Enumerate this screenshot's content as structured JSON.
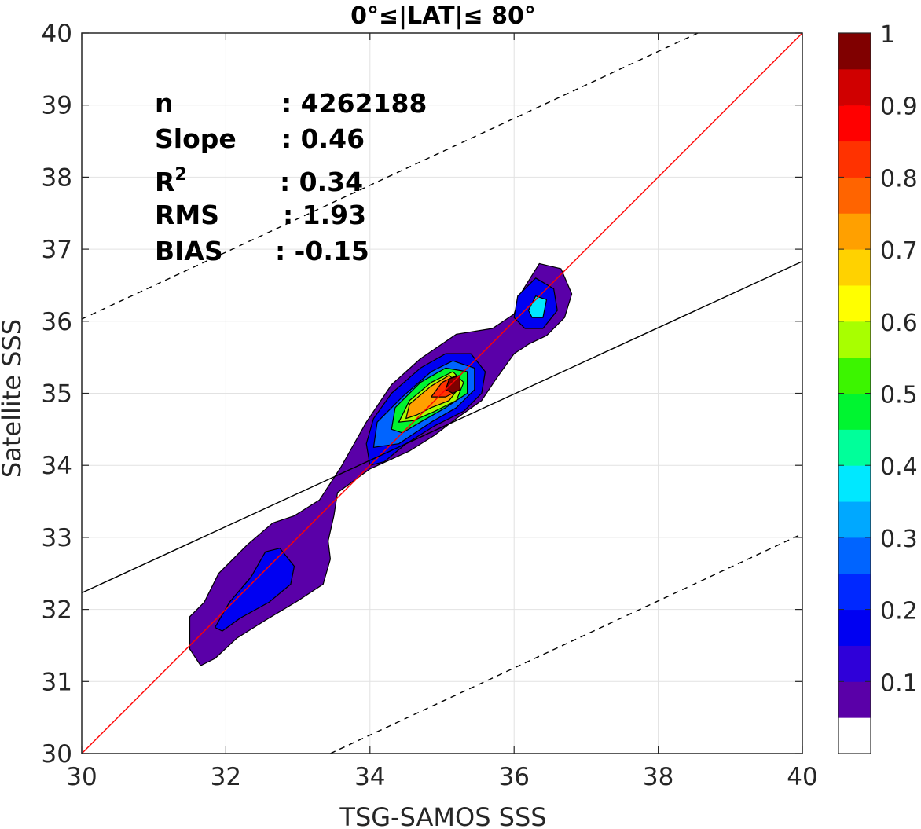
{
  "chart_data": {
    "type": "heatmap",
    "title": "0°≤|LAT|≤ 80°",
    "xlabel": "TSG-SAMOS SSS",
    "ylabel": "Satellite SSS",
    "xlim": [
      30,
      40
    ],
    "ylim": [
      30,
      40
    ],
    "xticks": [
      30,
      32,
      34,
      36,
      38,
      40
    ],
    "yticks": [
      30,
      31,
      32,
      33,
      34,
      35,
      36,
      37,
      38,
      39,
      40
    ],
    "grid": true,
    "stats": [
      {
        "key": "n",
        "value": ": 4262188"
      },
      {
        "key": "Slope",
        "value": ": 0.46"
      },
      {
        "key": "R",
        "sup": "2",
        "value": ": 0.34"
      },
      {
        "key": "RMS",
        "value": ": 1.93"
      },
      {
        "key": "BIAS",
        "value": ": -0.15"
      }
    ],
    "reference_lines": [
      {
        "name": "one-to-one",
        "style": "solid",
        "color": "#ff0000",
        "points": [
          [
            30,
            30
          ],
          [
            40,
            40
          ]
        ]
      },
      {
        "name": "regression",
        "style": "solid",
        "color": "#000000",
        "points": [
          [
            30,
            32.23
          ],
          [
            40,
            36.83
          ]
        ]
      },
      {
        "name": "upper-envelope",
        "style": "dashed",
        "color": "#000000",
        "points": [
          [
            30,
            36.03
          ],
          [
            38.55,
            40
          ]
        ]
      },
      {
        "name": "lower-envelope",
        "style": "dashed",
        "color": "#000000",
        "points": [
          [
            33.45,
            30
          ],
          [
            40,
            33.05
          ]
        ]
      }
    ],
    "density_contours": [
      {
        "level": 0.05,
        "points": [
          [
            31.5,
            31.45
          ],
          [
            31.5,
            31.9
          ],
          [
            31.7,
            32.1
          ],
          [
            31.9,
            32.5
          ],
          [
            32.3,
            32.9
          ],
          [
            32.65,
            33.2
          ],
          [
            32.95,
            33.3
          ],
          [
            33.3,
            33.52
          ],
          [
            33.6,
            33.98
          ],
          [
            33.95,
            34.6
          ],
          [
            34.3,
            35.12
          ],
          [
            34.7,
            35.48
          ],
          [
            35.2,
            35.82
          ],
          [
            35.7,
            35.9
          ],
          [
            36.0,
            36.1
          ],
          [
            36.1,
            36.4
          ],
          [
            36.35,
            36.8
          ],
          [
            36.65,
            36.73
          ],
          [
            36.8,
            36.38
          ],
          [
            36.7,
            36.05
          ],
          [
            36.45,
            35.8
          ],
          [
            36.2,
            35.68
          ],
          [
            36.0,
            35.55
          ],
          [
            35.75,
            35.2
          ],
          [
            35.55,
            34.9
          ],
          [
            35.2,
            34.65
          ],
          [
            34.9,
            34.42
          ],
          [
            34.55,
            34.2
          ],
          [
            34.0,
            33.95
          ],
          [
            33.55,
            33.62
          ],
          [
            33.5,
            33.3
          ],
          [
            33.42,
            32.95
          ],
          [
            33.45,
            32.7
          ],
          [
            33.35,
            32.35
          ],
          [
            33.0,
            32.12
          ],
          [
            32.55,
            31.85
          ],
          [
            32.15,
            31.6
          ],
          [
            31.85,
            31.32
          ],
          [
            31.65,
            31.22
          ]
        ]
      },
      {
        "level": 0.15,
        "points": [
          [
            31.85,
            31.75
          ],
          [
            32.05,
            32.1
          ],
          [
            32.35,
            32.45
          ],
          [
            32.55,
            32.8
          ],
          [
            32.75,
            32.85
          ],
          [
            32.95,
            32.6
          ],
          [
            32.9,
            32.35
          ],
          [
            32.6,
            32.1
          ],
          [
            32.2,
            31.88
          ],
          [
            31.95,
            31.7
          ]
        ]
      },
      {
        "level": 0.15,
        "points": [
          [
            34.0,
            34.0
          ],
          [
            33.95,
            34.3
          ],
          [
            34.05,
            34.65
          ],
          [
            34.3,
            35.0
          ],
          [
            34.7,
            35.35
          ],
          [
            35.05,
            35.55
          ],
          [
            35.4,
            35.55
          ],
          [
            35.6,
            35.3
          ],
          [
            35.55,
            35.0
          ],
          [
            35.3,
            34.75
          ],
          [
            34.9,
            34.55
          ],
          [
            34.5,
            34.3
          ],
          [
            34.2,
            34.05
          ]
        ]
      },
      {
        "level": 0.15,
        "points": [
          [
            36.0,
            36.05
          ],
          [
            36.05,
            36.35
          ],
          [
            36.3,
            36.6
          ],
          [
            36.55,
            36.45
          ],
          [
            36.6,
            36.15
          ],
          [
            36.4,
            35.9
          ],
          [
            36.15,
            35.9
          ]
        ]
      },
      {
        "level": 0.25,
        "points": [
          [
            34.05,
            34.25
          ],
          [
            34.1,
            34.6
          ],
          [
            34.45,
            34.95
          ],
          [
            34.85,
            35.3
          ],
          [
            35.15,
            35.45
          ],
          [
            35.45,
            35.35
          ],
          [
            35.45,
            35.05
          ],
          [
            35.2,
            34.8
          ],
          [
            34.85,
            34.6
          ],
          [
            34.4,
            34.3
          ]
        ]
      },
      {
        "level": 0.35,
        "points": [
          [
            36.2,
            36.15
          ],
          [
            36.3,
            36.35
          ],
          [
            36.45,
            36.3
          ],
          [
            36.4,
            36.05
          ],
          [
            36.25,
            36.05
          ]
        ]
      },
      {
        "level": 0.45,
        "points": [
          [
            34.3,
            34.5
          ],
          [
            34.35,
            34.8
          ],
          [
            34.7,
            35.15
          ],
          [
            35.05,
            35.35
          ],
          [
            35.35,
            35.3
          ],
          [
            35.35,
            35.0
          ],
          [
            35.05,
            34.8
          ],
          [
            34.7,
            34.6
          ],
          [
            34.45,
            34.45
          ]
        ]
      },
      {
        "level": 0.55,
        "points": [
          [
            34.4,
            34.6
          ],
          [
            34.55,
            34.9
          ],
          [
            34.85,
            35.15
          ],
          [
            35.15,
            35.3
          ],
          [
            35.3,
            35.15
          ],
          [
            35.2,
            34.9
          ],
          [
            34.9,
            34.75
          ],
          [
            34.6,
            34.62
          ]
        ]
      },
      {
        "level": 0.7,
        "points": [
          [
            34.5,
            34.65
          ],
          [
            34.55,
            34.85
          ],
          [
            34.85,
            35.1
          ],
          [
            35.1,
            35.25
          ],
          [
            35.25,
            35.1
          ],
          [
            35.1,
            34.9
          ],
          [
            34.85,
            34.8
          ],
          [
            34.65,
            34.7
          ]
        ]
      },
      {
        "level": 0.8,
        "points": [
          [
            34.85,
            34.95
          ],
          [
            35.0,
            35.15
          ],
          [
            35.2,
            35.25
          ],
          [
            35.25,
            35.05
          ],
          [
            35.05,
            34.95
          ]
        ]
      },
      {
        "level": 0.95,
        "points": [
          [
            35.05,
            35.05
          ],
          [
            35.1,
            35.2
          ],
          [
            35.25,
            35.25
          ],
          [
            35.25,
            35.05
          ],
          [
            35.15,
            35.0
          ]
        ]
      }
    ],
    "colorbar": {
      "min": 0,
      "max": 1,
      "ticks": [
        "0.1",
        "0.2",
        "0.3",
        "0.4",
        "0.5",
        "0.6",
        "0.7",
        "0.8",
        "0.9",
        "1"
      ],
      "tick_values": [
        0.1,
        0.2,
        0.3,
        0.4,
        0.5,
        0.6,
        0.7,
        0.8,
        0.9,
        1.0
      ],
      "colors": [
        "#ffffff",
        "#5a00a8",
        "#2f00d9",
        "#0000f2",
        "#0028ff",
        "#0064ff",
        "#00a8ff",
        "#00e8ff",
        "#00ff9a",
        "#00f530",
        "#3cf500",
        "#a8ff00",
        "#ffff00",
        "#ffd200",
        "#ffa000",
        "#ff6400",
        "#ff3200",
        "#ff0000",
        "#d00000",
        "#800000"
      ]
    }
  }
}
